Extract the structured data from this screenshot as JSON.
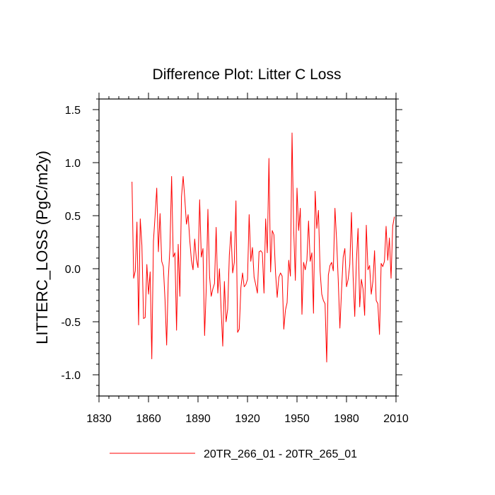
{
  "chart_data": {
    "type": "line",
    "title": "Difference Plot: Litter C Loss",
    "xlabel": "",
    "ylabel": "LITTERC_LOSS  (PgC/m2y)",
    "xlim": [
      1830,
      2010
    ],
    "ylim": [
      -1.2,
      1.6
    ],
    "x_ticks": [
      1830,
      1860,
      1890,
      1920,
      1950,
      1980,
      2010
    ],
    "x_tick_labels": [
      "1830",
      "1860",
      "1890",
      "1920",
      "1950",
      "1980",
      "2010"
    ],
    "y_ticks": [
      1.5,
      1.0,
      0.5,
      0.0,
      -0.5,
      -1.0
    ],
    "y_tick_labels": [
      "1.5",
      "1.0",
      "0.5",
      "0.0",
      "-0.5",
      "-1.0"
    ],
    "grid": false,
    "legend_position": "bottom",
    "series": [
      {
        "name": "20TR_266_01 - 20TR_265_01",
        "color": "#ff0000",
        "x_start": 1850,
        "x_step": 1,
        "values": [
          0.82,
          -0.09,
          -0.02,
          0.44,
          -0.53,
          0.47,
          0.22,
          -0.47,
          -0.46,
          0.04,
          -0.24,
          -0.03,
          -0.85,
          0.26,
          0.5,
          0.76,
          0.16,
          0.52,
          0.07,
          0.02,
          -0.29,
          -0.72,
          -0.09,
          0.2,
          0.87,
          0.11,
          0.15,
          -0.58,
          0.23,
          -0.26,
          0.68,
          0.87,
          0.66,
          0.42,
          0.51,
          0.27,
          0.08,
          -0.01,
          0.28,
          0.09,
          0.01,
          0.65,
          0.11,
          0.19,
          -0.63,
          -0.18,
          0.56,
          -0.07,
          -0.26,
          -0.19,
          -0.14,
          0.39,
          -0.23,
          0.0,
          -0.38,
          -0.73,
          -0.12,
          -0.5,
          -0.38,
          0.13,
          0.35,
          -0.04,
          0.06,
          0.64,
          -0.6,
          -0.57,
          -0.18,
          -0.04,
          -0.17,
          -0.15,
          -0.1,
          0.51,
          0.07,
          0.2,
          -0.08,
          -0.15,
          -0.23,
          0.16,
          0.17,
          0.15,
          -0.23,
          0.47,
          0.15,
          1.04,
          -0.03,
          0.36,
          0.32,
          -0.04,
          -0.27,
          -0.08,
          -0.04,
          -0.07,
          -0.57,
          -0.39,
          -0.32,
          0.08,
          -0.07,
          1.28,
          0.37,
          -0.11,
          0.76,
          0.36,
          0.57,
          -0.43,
          0.06,
          -0.01,
          0.08,
          0.45,
          0.07,
          0.15,
          -0.42,
          0.73,
          0.38,
          0.55,
          -0.02,
          -0.24,
          -0.3,
          -0.33,
          -0.88,
          -0.06,
          0.03,
          0.06,
          -0.02,
          0.57,
          0.27,
          -0.11,
          -0.56,
          -0.2,
          0.11,
          0.19,
          -0.17,
          -0.1,
          0.04,
          0.53,
          -0.07,
          -0.45,
          0.07,
          0.38,
          -0.36,
          -0.1,
          -0.19,
          -0.44,
          0.41,
          -0.01,
          0.03,
          -0.24,
          -0.12,
          0.17,
          -0.3,
          -0.33,
          -0.62,
          0.05,
          0.02,
          0.07,
          0.4,
          0.08,
          0.29,
          -0.09,
          0.4,
          0.49
        ]
      }
    ]
  }
}
